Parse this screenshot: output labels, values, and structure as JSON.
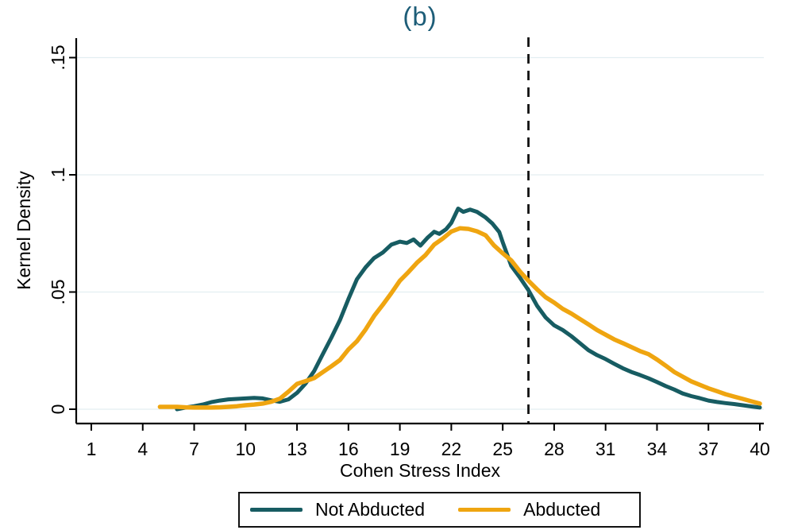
{
  "page": {
    "title": "(b)",
    "title_color": "#1d5d78"
  },
  "chart_data": {
    "type": "line",
    "title": "(b)",
    "xlabel": "Cohen Stress Index",
    "ylabel": "Kernel Density",
    "xlim": [
      1,
      40
    ],
    "ylim": [
      0,
      0.15
    ],
    "xticks": [
      1,
      4,
      7,
      10,
      13,
      16,
      19,
      22,
      25,
      28,
      31,
      34,
      37,
      40
    ],
    "yticks": [
      0,
      0.05,
      0.1,
      0.15
    ],
    "ytick_labels": [
      "0",
      ".05",
      ".1",
      ".15"
    ],
    "grid": "horizontal gridlines on",
    "gridline_color": "#e3eef1",
    "axis_color": "#000000",
    "reference_line": {
      "axis": "x",
      "value": 26.5,
      "style": "dashed",
      "color": "#111111"
    },
    "legend": {
      "position": "bottom",
      "border": true,
      "entries": [
        "Not Abducted",
        "Abducted"
      ]
    },
    "series": [
      {
        "name": "Not Abducted",
        "color": "#175c62",
        "points": [
          [
            6,
            0
          ],
          [
            6.5,
            0.0007
          ],
          [
            7,
            0.0013
          ],
          [
            7.5,
            0.002
          ],
          [
            8,
            0.003
          ],
          [
            8.5,
            0.0037
          ],
          [
            9,
            0.0042
          ],
          [
            9.5,
            0.0044
          ],
          [
            10,
            0.0046
          ],
          [
            10.5,
            0.0048
          ],
          [
            11,
            0.0046
          ],
          [
            11.5,
            0.0038
          ],
          [
            12,
            0.0032
          ],
          [
            12.5,
            0.0042
          ],
          [
            13,
            0.007
          ],
          [
            13.5,
            0.011
          ],
          [
            14,
            0.0163
          ],
          [
            14.5,
            0.0235
          ],
          [
            15,
            0.0305
          ],
          [
            15.5,
            0.038
          ],
          [
            16,
            0.047
          ],
          [
            16.5,
            0.0555
          ],
          [
            17,
            0.0605
          ],
          [
            17.5,
            0.0645
          ],
          [
            18,
            0.0668
          ],
          [
            18.5,
            0.0702
          ],
          [
            19,
            0.0715
          ],
          [
            19.4,
            0.0709
          ],
          [
            19.8,
            0.0724
          ],
          [
            20.2,
            0.0698
          ],
          [
            20.6,
            0.0731
          ],
          [
            21,
            0.0757
          ],
          [
            21.3,
            0.0748
          ],
          [
            21.7,
            0.0768
          ],
          [
            22,
            0.0795
          ],
          [
            22.4,
            0.0856
          ],
          [
            22.7,
            0.0842
          ],
          [
            23.1,
            0.0852
          ],
          [
            23.5,
            0.0842
          ],
          [
            24,
            0.0818
          ],
          [
            24.4,
            0.0792
          ],
          [
            24.8,
            0.0756
          ],
          [
            25,
            0.0712
          ],
          [
            25.5,
            0.0612
          ],
          [
            26,
            0.0562
          ],
          [
            26.5,
            0.0508
          ],
          [
            27,
            0.0442
          ],
          [
            27.5,
            0.0392
          ],
          [
            28,
            0.0358
          ],
          [
            28.5,
            0.0338
          ],
          [
            29,
            0.0312
          ],
          [
            29.5,
            0.0282
          ],
          [
            30,
            0.0252
          ],
          [
            30.5,
            0.0231
          ],
          [
            31,
            0.0214
          ],
          [
            31.5,
            0.0194
          ],
          [
            32,
            0.0175
          ],
          [
            32.5,
            0.0159
          ],
          [
            33,
            0.0146
          ],
          [
            33.5,
            0.0132
          ],
          [
            34,
            0.0116
          ],
          [
            34.5,
            0.0099
          ],
          [
            35,
            0.0084
          ],
          [
            35.5,
            0.0067
          ],
          [
            36,
            0.0056
          ],
          [
            36.5,
            0.0047
          ],
          [
            37,
            0.0037
          ],
          [
            37.5,
            0.0031
          ],
          [
            38,
            0.0026
          ],
          [
            38.5,
            0.0022
          ],
          [
            39,
            0.0017
          ],
          [
            39.5,
            0.0012
          ],
          [
            40,
            0.0007
          ]
        ]
      },
      {
        "name": "Abducted",
        "color": "#efa510",
        "points": [
          [
            5,
            0.001
          ],
          [
            5.5,
            0.001
          ],
          [
            6,
            0.001
          ],
          [
            6.5,
            0.0008
          ],
          [
            7,
            0.0007
          ],
          [
            7.5,
            0.0007
          ],
          [
            8,
            0.0007
          ],
          [
            8.5,
            0.0008
          ],
          [
            9,
            0.001
          ],
          [
            9.5,
            0.0013
          ],
          [
            10,
            0.0017
          ],
          [
            10.5,
            0.002
          ],
          [
            11,
            0.0024
          ],
          [
            11.5,
            0.0032
          ],
          [
            12,
            0.0045
          ],
          [
            12.5,
            0.0075
          ],
          [
            13,
            0.0108
          ],
          [
            13.5,
            0.012
          ],
          [
            14,
            0.0133
          ],
          [
            14.5,
            0.0158
          ],
          [
            15,
            0.0183
          ],
          [
            15.5,
            0.021
          ],
          [
            16,
            0.0255
          ],
          [
            16.5,
            0.029
          ],
          [
            17,
            0.034
          ],
          [
            17.5,
            0.0398
          ],
          [
            18,
            0.0445
          ],
          [
            18.5,
            0.0495
          ],
          [
            19,
            0.0548
          ],
          [
            19.5,
            0.0585
          ],
          [
            20,
            0.0625
          ],
          [
            20.5,
            0.0658
          ],
          [
            21,
            0.0702
          ],
          [
            21.5,
            0.0728
          ],
          [
            22,
            0.0758
          ],
          [
            22.5,
            0.0772
          ],
          [
            23,
            0.0769
          ],
          [
            23.5,
            0.0759
          ],
          [
            24,
            0.0742
          ],
          [
            24.5,
            0.0698
          ],
          [
            25,
            0.0665
          ],
          [
            25.5,
            0.0635
          ],
          [
            26,
            0.0588
          ],
          [
            26.5,
            0.0548
          ],
          [
            27,
            0.0512
          ],
          [
            27.5,
            0.0478
          ],
          [
            28,
            0.0455
          ],
          [
            28.5,
            0.0428
          ],
          [
            29,
            0.0408
          ],
          [
            29.5,
            0.0385
          ],
          [
            30,
            0.0362
          ],
          [
            30.5,
            0.0338
          ],
          [
            31,
            0.0318
          ],
          [
            31.5,
            0.0298
          ],
          [
            32,
            0.0282
          ],
          [
            32.5,
            0.0265
          ],
          [
            33,
            0.0248
          ],
          [
            33.5,
            0.0235
          ],
          [
            34,
            0.0212
          ],
          [
            34.5,
            0.0186
          ],
          [
            35,
            0.0159
          ],
          [
            35.5,
            0.0139
          ],
          [
            36,
            0.0119
          ],
          [
            36.5,
            0.0104
          ],
          [
            37,
            0.0089
          ],
          [
            37.5,
            0.0077
          ],
          [
            38,
            0.0064
          ],
          [
            38.5,
            0.0054
          ],
          [
            39,
            0.0044
          ],
          [
            39.5,
            0.0034
          ],
          [
            40,
            0.0024
          ]
        ]
      }
    ]
  }
}
